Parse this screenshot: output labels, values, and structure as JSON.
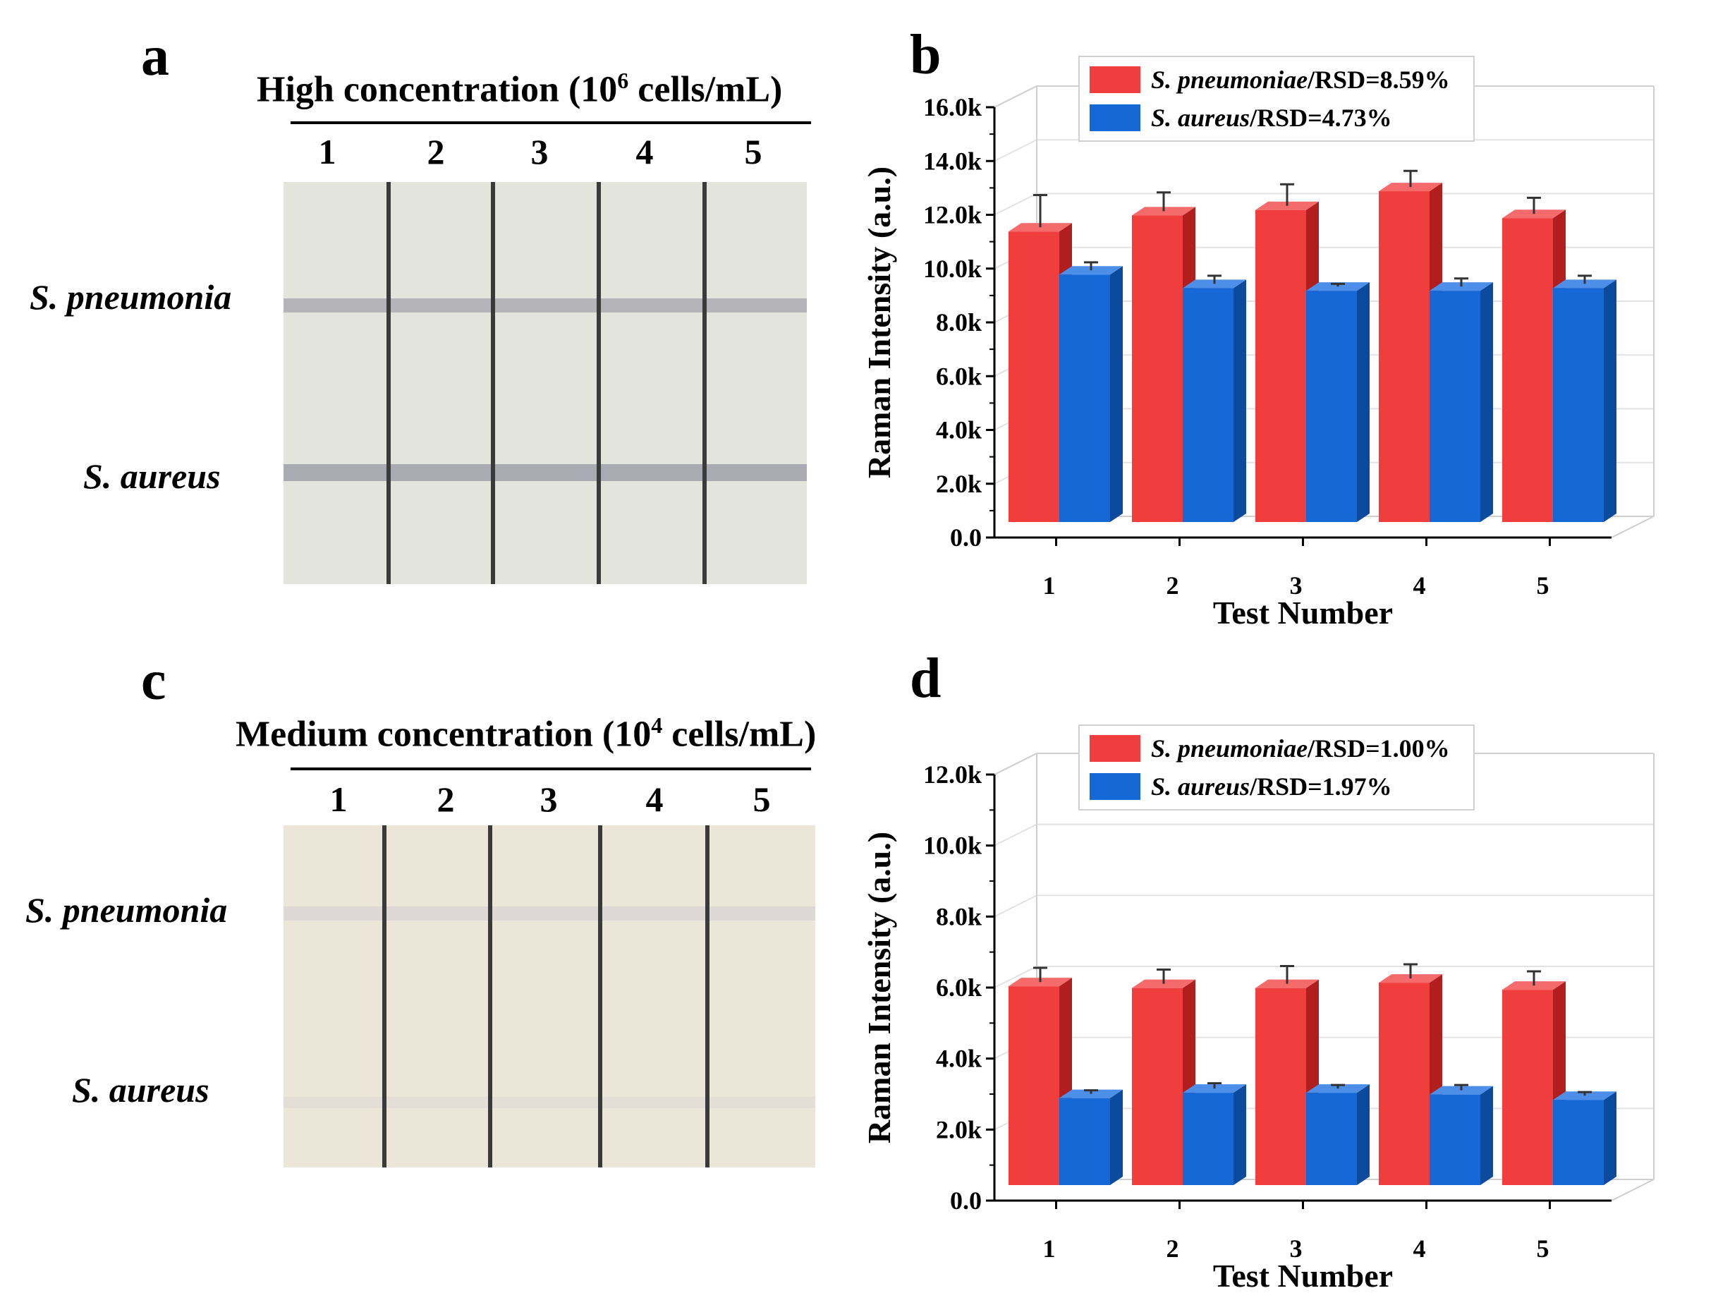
{
  "panel_a": {
    "letter": "a",
    "title_main": "High concentration (10",
    "title_sup": "6",
    "title_end": " cells/mL)",
    "lanes": [
      "1",
      "2",
      "3",
      "4",
      "5"
    ],
    "row_labels": [
      "S. pneumonia",
      "S. aureus"
    ]
  },
  "panel_c": {
    "letter": "c",
    "title_main": "Medium concentration (10",
    "title_sup": "4",
    "title_end": " cells/mL)",
    "lanes": [
      "1",
      "2",
      "3",
      "4",
      "5"
    ],
    "row_labels": [
      "S. pneumonia",
      "S. aureus"
    ]
  },
  "colors": {
    "series1": "#f03e3e",
    "series1_top": "#f56a6a",
    "series1_side": "#b01e1e",
    "series2": "#1668d6",
    "series2_top": "#4d8fe8",
    "series2_side": "#0c4a9e"
  },
  "chart_data": [
    {
      "panel_letter": "b",
      "type": "bar",
      "title": "",
      "xlabel": "Test Number",
      "ylabel": "Raman Intensity (a.u.)",
      "categories": [
        "1",
        "2",
        "3",
        "4",
        "5"
      ],
      "ylim": [
        0,
        16000
      ],
      "yticks": [
        0,
        2000,
        4000,
        6000,
        8000,
        10000,
        12000,
        14000,
        16000
      ],
      "ytick_labels": [
        "0.0",
        "2.0k",
        "4.0k",
        "6.0k",
        "8.0k",
        "10.0k",
        "12.0k",
        "14.0k",
        "16.0k"
      ],
      "legend_position": "top-left",
      "series": [
        {
          "name_italic": "S. pneumoniae",
          "name_rest": "/RSD=8.59%",
          "values": [
            10800,
            11400,
            11600,
            12300,
            11300
          ],
          "errors": [
            1200,
            700,
            800,
            600,
            600
          ]
        },
        {
          "name_italic": "S. aureus",
          "name_rest": "/RSD=4.73%",
          "values": [
            9200,
            8700,
            8600,
            8600,
            8700
          ],
          "errors": [
            300,
            300,
            100,
            300,
            300
          ]
        }
      ]
    },
    {
      "panel_letter": "d",
      "type": "bar",
      "title": "",
      "xlabel": "Test Number",
      "ylabel": "Raman Intensity (a.u.)",
      "categories": [
        "1",
        "2",
        "3",
        "4",
        "5"
      ],
      "ylim": [
        0,
        12000
      ],
      "yticks": [
        0,
        2000,
        4000,
        6000,
        8000,
        10000,
        12000
      ],
      "ytick_labels": [
        "0.0",
        "2.0k",
        "4.0k",
        "6.0k",
        "8.0k",
        "10.0k",
        "12.0k"
      ],
      "legend_position": "top-left",
      "series": [
        {
          "name_italic": "S. pneumoniae",
          "name_rest": "/RSD=1.00%",
          "values": [
            5600,
            5550,
            5550,
            5700,
            5500
          ],
          "errors": [
            400,
            400,
            500,
            400,
            400
          ]
        },
        {
          "name_italic": "S. aureus",
          "name_rest": "/RSD=1.97%",
          "values": [
            2450,
            2600,
            2600,
            2550,
            2400
          ],
          "errors": [
            100,
            150,
            100,
            150,
            100
          ]
        }
      ]
    }
  ]
}
